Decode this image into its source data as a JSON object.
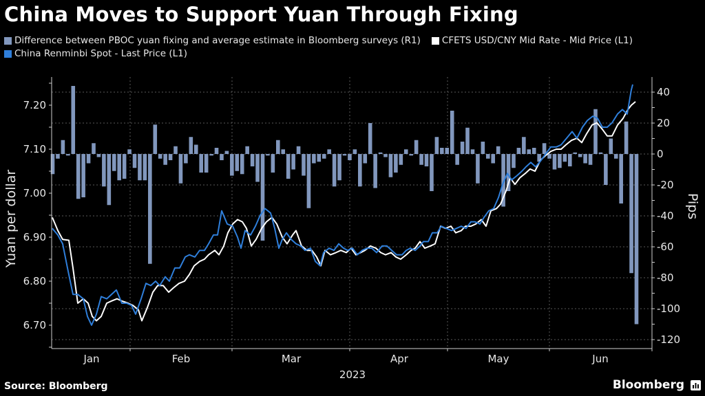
{
  "header": {
    "title": "China Moves to Support Yuan Through Fixing"
  },
  "legend": [
    {
      "label": "Difference between PBOC yuan fixing and average estimate in Bloomberg surveys (R1)",
      "color": "#8197bd"
    },
    {
      "label": "CFETS USD/CNY Mid Rate - Mid Price (L1)",
      "color": "#ffffff"
    },
    {
      "label": "China Renminbi Spot - Last Price (L1)",
      "color": "#2f7fdb"
    }
  ],
  "footer": {
    "source": "Source: Bloomberg",
    "brand": "Bloomberg"
  },
  "chart_data": {
    "type": "bar+line",
    "title": "China Moves to Support Yuan Through Fixing",
    "xlabel": "2023",
    "ylabel_left": "Yuan per dollar",
    "ylabel_right": "Pips",
    "x_tick_labels": [
      "Jan",
      "Feb",
      "Mar",
      "Apr",
      "May",
      "Jun"
    ],
    "y_left_ticks": [
      "7.20",
      "7.10",
      "7.00",
      "6.90",
      "6.80",
      "6.70"
    ],
    "y_right_ticks": [
      "40",
      "20",
      "0",
      "-20",
      "-40",
      "-60",
      "-80",
      "-100",
      "-120"
    ],
    "ylim_left": [
      6.665,
      7.29
    ],
    "ylim_right": [
      -127,
      57
    ],
    "grid": true,
    "legend_position": "top",
    "series": [
      {
        "name": "Difference between PBOC yuan fixing and average estimate in Bloomberg surveys (R1)",
        "type": "bar",
        "axis": "right",
        "color": "#8197bd",
        "values": [
          -13,
          -3,
          9,
          -1,
          44,
          -29,
          -28,
          -6,
          7,
          -2,
          -21,
          -33,
          -11,
          -17,
          -16,
          3,
          -9,
          -17,
          -17,
          -71,
          19,
          -3,
          -7,
          -4,
          5,
          -19,
          -6,
          11,
          6,
          -12,
          -12,
          -1,
          4,
          -4,
          2,
          -14,
          -11,
          -13,
          5,
          -8,
          -18,
          -56,
          -1,
          -12,
          9,
          3,
          -16,
          -10,
          5,
          -14,
          -35,
          -6,
          -5,
          -3,
          3,
          -21,
          -17,
          -1,
          -4,
          3,
          -21,
          -6,
          20,
          -22,
          1,
          -2,
          -15,
          -12,
          -7,
          3,
          -1,
          9,
          -7,
          -8,
          -24,
          11,
          4,
          4,
          28,
          -7,
          8,
          17,
          3,
          -19,
          8,
          -3,
          -6,
          5,
          -34,
          -24,
          -9,
          4,
          11,
          3,
          4,
          -5,
          7,
          -3,
          -10,
          -9,
          -5,
          -8,
          1,
          -2,
          -6,
          -7,
          29,
          1,
          -20,
          10,
          -3,
          -32,
          21,
          -77,
          -110
        ]
      },
      {
        "name": "CFETS USD/CNY Mid Rate - Mid Price (L1)",
        "type": "line",
        "axis": "left",
        "color": "#ffffff",
        "points": [
          [
            76,
            6.945
          ],
          [
            84,
            6.915
          ],
          [
            91,
            6.895
          ],
          [
            100,
            6.893
          ],
          [
            106,
            6.83
          ],
          [
            113,
            6.75
          ],
          [
            121,
            6.76
          ],
          [
            128,
            6.75
          ],
          [
            134,
            6.72
          ],
          [
            140,
            6.71
          ],
          [
            147,
            6.72
          ],
          [
            155,
            6.75
          ],
          [
            162,
            6.755
          ],
          [
            170,
            6.76
          ],
          [
            177,
            6.755
          ],
          [
            186,
            6.75
          ],
          [
            193,
            6.745
          ],
          [
            201,
            6.735
          ],
          [
            206,
            6.71
          ],
          [
            214,
            6.74
          ],
          [
            222,
            6.775
          ],
          [
            229,
            6.79
          ],
          [
            237,
            6.79
          ],
          [
            245,
            6.775
          ],
          [
            252,
            6.785
          ],
          [
            260,
            6.795
          ],
          [
            268,
            6.8
          ],
          [
            275,
            6.815
          ],
          [
            282,
            6.835
          ],
          [
            290,
            6.845
          ],
          [
            297,
            6.85
          ],
          [
            303,
            6.86
          ],
          [
            312,
            6.87
          ],
          [
            318,
            6.86
          ],
          [
            325,
            6.88
          ],
          [
            331,
            6.91
          ],
          [
            338,
            6.93
          ],
          [
            345,
            6.94
          ],
          [
            352,
            6.935
          ],
          [
            358,
            6.92
          ],
          [
            365,
            6.88
          ],
          [
            372,
            6.895
          ],
          [
            380,
            6.92
          ],
          [
            387,
            6.935
          ],
          [
            395,
            6.945
          ],
          [
            402,
            6.93
          ],
          [
            410,
            6.9
          ],
          [
            417,
            6.885
          ],
          [
            425,
            6.905
          ],
          [
            430,
            6.915
          ],
          [
            438,
            6.88
          ],
          [
            446,
            6.87
          ],
          [
            453,
            6.87
          ],
          [
            460,
            6.855
          ],
          [
            466,
            6.835
          ],
          [
            472,
            6.87
          ],
          [
            480,
            6.86
          ],
          [
            488,
            6.865
          ],
          [
            495,
            6.87
          ],
          [
            503,
            6.865
          ],
          [
            510,
            6.875
          ],
          [
            517,
            6.86
          ],
          [
            524,
            6.865
          ],
          [
            530,
            6.87
          ],
          [
            538,
            6.88
          ],
          [
            546,
            6.875
          ],
          [
            553,
            6.865
          ],
          [
            560,
            6.86
          ],
          [
            568,
            6.865
          ],
          [
            575,
            6.855
          ],
          [
            582,
            6.85
          ],
          [
            590,
            6.86
          ],
          [
            597,
            6.87
          ],
          [
            603,
            6.875
          ],
          [
            610,
            6.89
          ],
          [
            617,
            6.875
          ],
          [
            625,
            6.88
          ],
          [
            632,
            6.885
          ],
          [
            640,
            6.925
          ],
          [
            647,
            6.92
          ],
          [
            655,
            6.925
          ],
          [
            662,
            6.91
          ],
          [
            670,
            6.915
          ],
          [
            676,
            6.925
          ],
          [
            684,
            6.925
          ],
          [
            691,
            6.93
          ],
          [
            699,
            6.94
          ],
          [
            706,
            6.925
          ],
          [
            713,
            6.96
          ],
          [
            721,
            6.965
          ],
          [
            727,
            6.975
          ],
          [
            735,
            7.005
          ],
          [
            741,
            7.035
          ],
          [
            748,
            7.02
          ],
          [
            755,
            7.035
          ],
          [
            763,
            7.045
          ],
          [
            770,
            7.055
          ],
          [
            777,
            7.05
          ],
          [
            785,
            7.075
          ],
          [
            792,
            7.085
          ],
          [
            800,
            7.095
          ],
          [
            808,
            7.1
          ],
          [
            815,
            7.1
          ],
          [
            822,
            7.11
          ],
          [
            830,
            7.12
          ],
          [
            838,
            7.125
          ],
          [
            845,
            7.115
          ],
          [
            852,
            7.135
          ],
          [
            860,
            7.155
          ],
          [
            867,
            7.16
          ],
          [
            875,
            7.145
          ],
          [
            882,
            7.13
          ],
          [
            889,
            7.13
          ],
          [
            897,
            7.155
          ],
          [
            905,
            7.17
          ],
          [
            912,
            7.19
          ],
          [
            917,
            7.2
          ],
          [
            923,
            7.208
          ]
        ]
      },
      {
        "name": "China Renminbi Spot - Last Price (L1)",
        "type": "line",
        "axis": "left",
        "color": "#2f7fdb",
        "points": [
          [
            76,
            6.92
          ],
          [
            84,
            6.905
          ],
          [
            91,
            6.885
          ],
          [
            98,
            6.83
          ],
          [
            106,
            6.77
          ],
          [
            113,
            6.77
          ],
          [
            121,
            6.76
          ],
          [
            127,
            6.72
          ],
          [
            133,
            6.7
          ],
          [
            140,
            6.725
          ],
          [
            147,
            6.765
          ],
          [
            155,
            6.76
          ],
          [
            162,
            6.77
          ],
          [
            169,
            6.78
          ],
          [
            177,
            6.75
          ],
          [
            184,
            6.75
          ],
          [
            191,
            6.745
          ],
          [
            197,
            6.725
          ],
          [
            205,
            6.76
          ],
          [
            212,
            6.795
          ],
          [
            219,
            6.79
          ],
          [
            226,
            6.8
          ],
          [
            232,
            6.79
          ],
          [
            240,
            6.81
          ],
          [
            246,
            6.8
          ],
          [
            254,
            6.83
          ],
          [
            261,
            6.83
          ],
          [
            269,
            6.855
          ],
          [
            275,
            6.86
          ],
          [
            283,
            6.855
          ],
          [
            290,
            6.87
          ],
          [
            297,
            6.87
          ],
          [
            303,
            6.885
          ],
          [
            310,
            6.905
          ],
          [
            316,
            6.905
          ],
          [
            322,
            6.96
          ],
          [
            330,
            6.93
          ],
          [
            338,
            6.925
          ],
          [
            345,
            6.9
          ],
          [
            350,
            6.875
          ],
          [
            356,
            6.915
          ],
          [
            364,
            6.905
          ],
          [
            371,
            6.925
          ],
          [
            378,
            6.95
          ],
          [
            385,
            6.965
          ],
          [
            393,
            6.955
          ],
          [
            399,
            6.92
          ],
          [
            405,
            6.875
          ],
          [
            410,
            6.895
          ],
          [
            416,
            6.91
          ],
          [
            423,
            6.895
          ],
          [
            430,
            6.885
          ],
          [
            437,
            6.88
          ],
          [
            443,
            6.87
          ],
          [
            451,
            6.875
          ],
          [
            458,
            6.845
          ],
          [
            465,
            6.835
          ],
          [
            470,
            6.865
          ],
          [
            478,
            6.875
          ],
          [
            485,
            6.87
          ],
          [
            492,
            6.885
          ],
          [
            499,
            6.875
          ],
          [
            505,
            6.87
          ],
          [
            512,
            6.875
          ],
          [
            519,
            6.86
          ],
          [
            526,
            6.87
          ],
          [
            533,
            6.875
          ],
          [
            540,
            6.875
          ],
          [
            547,
            6.865
          ],
          [
            555,
            6.88
          ],
          [
            562,
            6.88
          ],
          [
            569,
            6.87
          ],
          [
            576,
            6.86
          ],
          [
            584,
            6.86
          ],
          [
            590,
            6.87
          ],
          [
            596,
            6.875
          ],
          [
            603,
            6.87
          ],
          [
            610,
            6.88
          ],
          [
            615,
            6.89
          ],
          [
            622,
            6.89
          ],
          [
            628,
            6.91
          ],
          [
            635,
            6.91
          ],
          [
            641,
            6.925
          ],
          [
            648,
            6.92
          ],
          [
            656,
            6.915
          ],
          [
            663,
            6.92
          ],
          [
            670,
            6.925
          ],
          [
            677,
            6.92
          ],
          [
            684,
            6.935
          ],
          [
            690,
            6.935
          ],
          [
            697,
            6.93
          ],
          [
            703,
            6.945
          ],
          [
            710,
            6.96
          ],
          [
            717,
            6.965
          ],
          [
            724,
            6.99
          ],
          [
            730,
            7.02
          ],
          [
            737,
            7.045
          ],
          [
            743,
            7.03
          ],
          [
            751,
            7.04
          ],
          [
            758,
            7.05
          ],
          [
            764,
            7.06
          ],
          [
            771,
            7.07
          ],
          [
            778,
            7.06
          ],
          [
            786,
            7.075
          ],
          [
            793,
            7.09
          ],
          [
            800,
            7.105
          ],
          [
            808,
            7.105
          ],
          [
            815,
            7.11
          ],
          [
            823,
            7.125
          ],
          [
            831,
            7.14
          ],
          [
            838,
            7.125
          ],
          [
            846,
            7.15
          ],
          [
            853,
            7.165
          ],
          [
            861,
            7.175
          ],
          [
            868,
            7.17
          ],
          [
            875,
            7.15
          ],
          [
            882,
            7.15
          ],
          [
            889,
            7.16
          ],
          [
            897,
            7.18
          ],
          [
            904,
            7.19
          ],
          [
            911,
            7.18
          ],
          [
            917,
            7.235
          ],
          [
            919,
            7.247
          ]
        ]
      }
    ]
  }
}
